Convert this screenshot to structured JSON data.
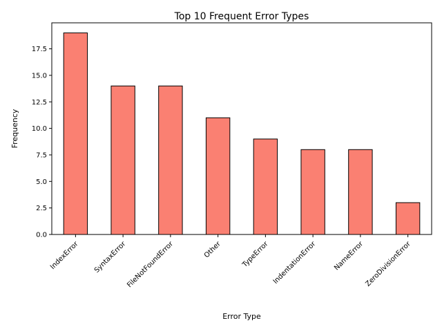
{
  "chart_data": {
    "type": "bar",
    "title": "Top 10 Frequent Error Types",
    "xlabel": "Error Type",
    "ylabel": "Frequency",
    "categories": [
      "IndexError",
      "SyntaxError",
      "FileNotFoundError",
      "Other",
      "TypeError",
      "IndentationError",
      "NameError",
      "ZeroDivisionError"
    ],
    "values": [
      19,
      14,
      14,
      11,
      9,
      8,
      8,
      3
    ],
    "ylim": [
      0,
      19.95
    ],
    "yticks": [
      0.0,
      2.5,
      5.0,
      7.5,
      10.0,
      12.5,
      15.0,
      17.5
    ],
    "ytick_labels": [
      "0.0",
      "2.5",
      "5.0",
      "7.5",
      "10.0",
      "12.5",
      "15.0",
      "17.5"
    ],
    "grid": false,
    "legend": "none",
    "colors": {
      "bar_fill": "#fa8072",
      "bar_edge": "#000000"
    }
  }
}
